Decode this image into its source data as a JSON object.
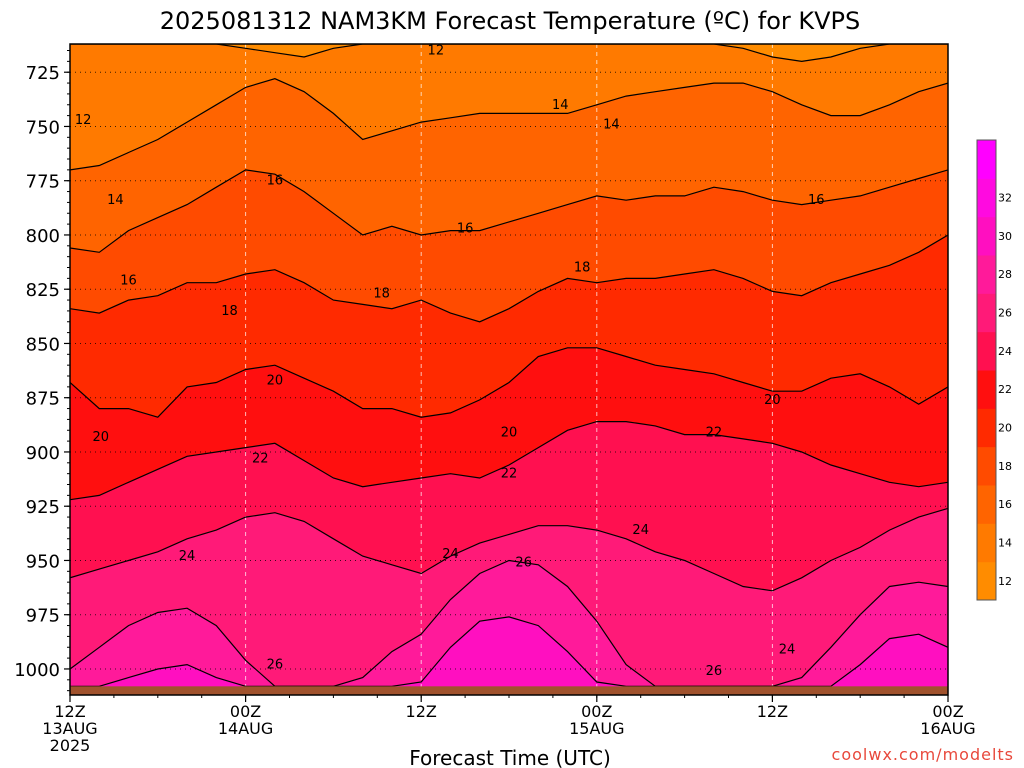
{
  "chart_data": {
    "type": "heatmap",
    "title": "2025081312 NAM3KM Forecast Temperature (ºC) for KVPS",
    "xlabel": "Forecast Time (UTC)",
    "ylabel": "",
    "credit": "coolwx.com/modelts",
    "y_axis": {
      "unit": "hPa",
      "inverted": true,
      "range": [
        1012,
        712
      ],
      "ticks": [
        725,
        750,
        775,
        800,
        825,
        850,
        875,
        900,
        925,
        950,
        975,
        1000
      ],
      "grid": "dotted"
    },
    "x_axis": {
      "range_hours": [
        0,
        60
      ],
      "ticks": [
        {
          "hour": 0,
          "line1": "12Z",
          "line2": "13AUG",
          "line3": "2025"
        },
        {
          "hour": 12,
          "line1": "00Z",
          "line2": "14AUG",
          "line3": ""
        },
        {
          "hour": 24,
          "line1": "12Z",
          "line2": "",
          "line3": ""
        },
        {
          "hour": 36,
          "line1": "00Z",
          "line2": "15AUG",
          "line3": ""
        },
        {
          "hour": 48,
          "line1": "12Z",
          "line2": "",
          "line3": ""
        },
        {
          "hour": 60,
          "line1": "00Z",
          "line2": "16AUG",
          "line3": ""
        }
      ],
      "grid": "dashed"
    },
    "colorbar": {
      "levels": [
        12,
        14,
        16,
        18,
        20,
        22,
        24,
        26,
        28,
        30,
        32
      ],
      "colors": [
        "#ff8c00",
        "#ff7a00",
        "#ff6400",
        "#ff4b00",
        "#ff2a00",
        "#ff0f0f",
        "#ff1050",
        "#ff1a78",
        "#ff1a9a",
        "#ff0fc0",
        "#ff0ae0",
        "#ff00ff"
      ]
    },
    "ground_color": "#a0522d",
    "ground_pressure": 1008,
    "isotherms": [
      {
        "value": 12,
        "p": [
          712,
          712,
          712,
          712,
          712,
          712,
          714,
          716,
          718,
          714,
          712,
          712,
          712,
          712,
          712,
          712,
          712,
          712,
          712,
          712,
          712,
          712,
          712,
          714,
          718,
          720,
          718,
          714,
          712,
          712,
          712
        ]
      },
      {
        "value": 14,
        "p": [
          770,
          768,
          762,
          756,
          748,
          740,
          732,
          728,
          734,
          744,
          756,
          752,
          748,
          746,
          744,
          744,
          744,
          744,
          740,
          736,
          734,
          732,
          730,
          730,
          734,
          740,
          745,
          745,
          740,
          734,
          730
        ]
      },
      {
        "value": 16,
        "p": [
          806,
          808,
          798,
          792,
          786,
          778,
          770,
          772,
          780,
          790,
          800,
          796,
          800,
          798,
          798,
          794,
          790,
          786,
          782,
          784,
          782,
          782,
          778,
          780,
          784,
          786,
          784,
          782,
          778,
          774,
          770
        ]
      },
      {
        "value": 18,
        "p": [
          834,
          836,
          830,
          828,
          822,
          822,
          818,
          816,
          822,
          830,
          832,
          834,
          830,
          836,
          840,
          834,
          826,
          820,
          822,
          820,
          820,
          818,
          816,
          820,
          826,
          828,
          822,
          818,
          814,
          808,
          800
        ]
      },
      {
        "value": 20,
        "p": [
          868,
          880,
          880,
          884,
          870,
          868,
          862,
          860,
          866,
          872,
          880,
          880,
          884,
          882,
          876,
          868,
          856,
          852,
          852,
          856,
          860,
          862,
          864,
          868,
          872,
          872,
          866,
          864,
          870,
          878,
          870
        ]
      },
      {
        "value": 22,
        "p": [
          922,
          920,
          914,
          908,
          902,
          900,
          898,
          896,
          904,
          912,
          916,
          914,
          912,
          910,
          912,
          906,
          898,
          890,
          886,
          886,
          888,
          892,
          892,
          894,
          896,
          900,
          906,
          910,
          914,
          916,
          914
        ]
      },
      {
        "value": 24,
        "p": [
          958,
          954,
          950,
          946,
          940,
          936,
          930,
          928,
          932,
          940,
          948,
          952,
          956,
          948,
          942,
          938,
          934,
          934,
          936,
          940,
          946,
          950,
          956,
          962,
          964,
          958,
          950,
          944,
          936,
          930,
          926
        ]
      },
      {
        "value": 26,
        "p": [
          1000,
          990,
          980,
          974,
          972,
          980,
          996,
          1008,
          1008,
          1008,
          1004,
          992,
          984,
          968,
          956,
          950,
          952,
          962,
          978,
          998,
          1008,
          1008,
          1008,
          1008,
          1008,
          1004,
          990,
          975,
          962,
          960,
          962
        ]
      },
      {
        "value": 28,
        "p": [
          1008,
          1008,
          1004,
          1000,
          998,
          1004,
          1008,
          1008,
          1008,
          1008,
          1008,
          1008,
          1006,
          990,
          978,
          976,
          980,
          992,
          1006,
          1008,
          1008,
          1008,
          1008,
          1008,
          1008,
          1008,
          1008,
          998,
          986,
          984,
          990
        ]
      }
    ],
    "contour_labels": [
      {
        "text": "12",
        "hour": 0.9,
        "p": 747
      },
      {
        "text": "12",
        "hour": 25.0,
        "p": 715
      },
      {
        "text": "14",
        "hour": 3.1,
        "p": 784
      },
      {
        "text": "14",
        "hour": 37.0,
        "p": 749
      },
      {
        "text": "14",
        "hour": 33.5,
        "p": 740
      },
      {
        "text": "16",
        "hour": 4.0,
        "p": 821
      },
      {
        "text": "16",
        "hour": 14.0,
        "p": 775
      },
      {
        "text": "16",
        "hour": 27.0,
        "p": 797
      },
      {
        "text": "16",
        "hour": 51.0,
        "p": 784
      },
      {
        "text": "18",
        "hour": 10.9,
        "p": 835
      },
      {
        "text": "18",
        "hour": 21.3,
        "p": 827
      },
      {
        "text": "18",
        "hour": 35.0,
        "p": 815
      },
      {
        "text": "20",
        "hour": 2.1,
        "p": 893
      },
      {
        "text": "20",
        "hour": 14.0,
        "p": 867
      },
      {
        "text": "20",
        "hour": 30.0,
        "p": 891
      },
      {
        "text": "20",
        "hour": 48.0,
        "p": 876
      },
      {
        "text": "22",
        "hour": 13.0,
        "p": 903
      },
      {
        "text": "22",
        "hour": 30.0,
        "p": 910
      },
      {
        "text": "22",
        "hour": 44.0,
        "p": 891
      },
      {
        "text": "24",
        "hour": 8.0,
        "p": 948
      },
      {
        "text": "24",
        "hour": 26.0,
        "p": 947
      },
      {
        "text": "24",
        "hour": 39.0,
        "p": 936
      },
      {
        "text": "24",
        "hour": 49.0,
        "p": 991
      },
      {
        "text": "26",
        "hour": 14.0,
        "p": 998
      },
      {
        "text": "26",
        "hour": 31.0,
        "p": 951
      },
      {
        "text": "26",
        "hour": 44.0,
        "p": 1001
      }
    ]
  }
}
